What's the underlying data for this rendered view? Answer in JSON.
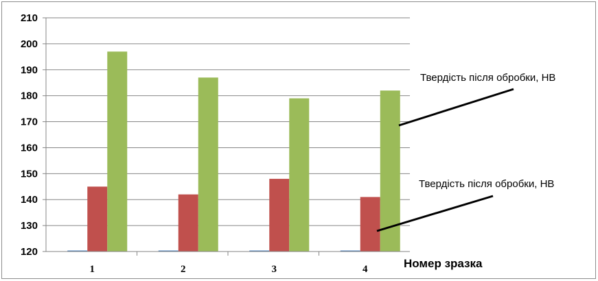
{
  "chart_data": {
    "type": "bar",
    "categories": [
      "1",
      "2",
      "3",
      "4"
    ],
    "series": [
      {
        "values": [
          120,
          120,
          120,
          120
        ],
        "color": "#4f81bd"
      },
      {
        "values": [
          145,
          142,
          148,
          141
        ],
        "color": "#c0504d"
      },
      {
        "values": [
          197,
          187,
          179,
          182
        ],
        "color": "#9bbb59"
      }
    ],
    "ylim": [
      120,
      210
    ],
    "yticks": [
      "120",
      "130",
      "140",
      "150",
      "160",
      "170",
      "180",
      "190",
      "200",
      "210"
    ],
    "xlabel": "Номер зразка",
    "grid": true,
    "annotations": [
      {
        "text": "Твердість після обробки, НВ",
        "series": 2
      },
      {
        "text": "Твердість після обробки, НВ",
        "series": 1
      }
    ]
  }
}
